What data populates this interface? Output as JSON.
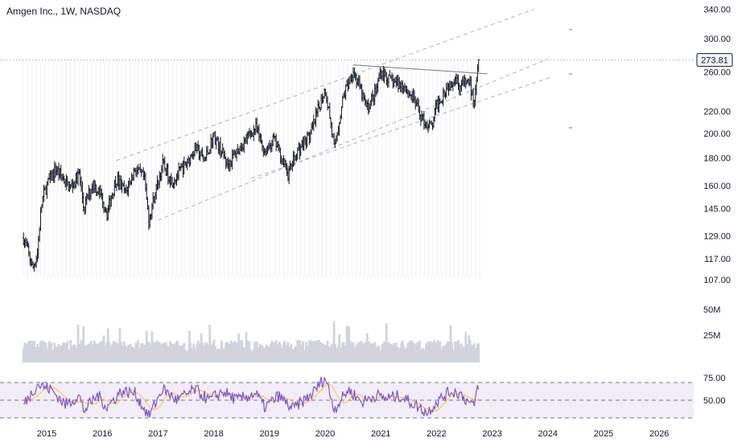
{
  "title": "Amgen Inc., 1W, NASDAQ",
  "chart_data": [
    {
      "type": "candlestick",
      "title": "Amgen Inc., 1W, NASDAQ",
      "scale": "log",
      "last_price": "273.81",
      "y_ticks": [
        "340.00",
        "300.00",
        "260.00",
        "220.00",
        "200.00",
        "180.00",
        "160.00",
        "145.00",
        "129.00",
        "117.00",
        "107.00"
      ],
      "x_ticks": [
        "2015",
        "2016",
        "2017",
        "2018",
        "2019",
        "2020",
        "2021",
        "2022",
        "2023",
        "2024",
        "2025",
        "2026"
      ],
      "ylim": [
        102,
        345
      ],
      "price_path": [
        {
          "t": "2014-08",
          "v": 128
        },
        {
          "t": "2014-10",
          "v": 112
        },
        {
          "t": "2014-11",
          "v": 120
        },
        {
          "t": "2014-12",
          "v": 150
        },
        {
          "t": "2015-01",
          "v": 160
        },
        {
          "t": "2015-03",
          "v": 172
        },
        {
          "t": "2015-06",
          "v": 158
        },
        {
          "t": "2015-08",
          "v": 168
        },
        {
          "t": "2015-09",
          "v": 145
        },
        {
          "t": "2015-11",
          "v": 162
        },
        {
          "t": "2016-01",
          "v": 152
        },
        {
          "t": "2016-02",
          "v": 142
        },
        {
          "t": "2016-04",
          "v": 165
        },
        {
          "t": "2016-06",
          "v": 155
        },
        {
          "t": "2016-08",
          "v": 172
        },
        {
          "t": "2016-10",
          "v": 165
        },
        {
          "t": "2016-11",
          "v": 138
        },
        {
          "t": "2017-02",
          "v": 175
        },
        {
          "t": "2017-04",
          "v": 163
        },
        {
          "t": "2017-07",
          "v": 175
        },
        {
          "t": "2017-09",
          "v": 188
        },
        {
          "t": "2017-11",
          "v": 178
        },
        {
          "t": "2018-01",
          "v": 198
        },
        {
          "t": "2018-04",
          "v": 175
        },
        {
          "t": "2018-06",
          "v": 185
        },
        {
          "t": "2018-10",
          "v": 205
        },
        {
          "t": "2018-12",
          "v": 185
        },
        {
          "t": "2019-02",
          "v": 195
        },
        {
          "t": "2019-05",
          "v": 168
        },
        {
          "t": "2019-07",
          "v": 185
        },
        {
          "t": "2019-10",
          "v": 200
        },
        {
          "t": "2020-01",
          "v": 242
        },
        {
          "t": "2020-02",
          "v": 215
        },
        {
          "t": "2020-03",
          "v": 185
        },
        {
          "t": "2020-05",
          "v": 235
        },
        {
          "t": "2020-07",
          "v": 262
        },
        {
          "t": "2020-10",
          "v": 222
        },
        {
          "t": "2020-12",
          "v": 240
        },
        {
          "t": "2021-01",
          "v": 262
        },
        {
          "t": "2021-03",
          "v": 250
        },
        {
          "t": "2021-06",
          "v": 245
        },
        {
          "t": "2021-08",
          "v": 232
        },
        {
          "t": "2021-10",
          "v": 212
        },
        {
          "t": "2021-12",
          "v": 205
        },
        {
          "t": "2022-01",
          "v": 225
        },
        {
          "t": "2022-03",
          "v": 242
        },
        {
          "t": "2022-05",
          "v": 255
        },
        {
          "t": "2022-06",
          "v": 245
        },
        {
          "t": "2022-08",
          "v": 250
        },
        {
          "t": "2022-09",
          "v": 228
        },
        {
          "t": "2022-10",
          "v": 273.81
        }
      ],
      "trendlines": [
        {
          "style": "dashed",
          "from": {
            "t": "2016-04",
            "v": 178
          },
          "to": {
            "t": "2023-10",
            "v": 340
          }
        },
        {
          "style": "dashed",
          "from": {
            "t": "2017-01",
            "v": 138
          },
          "to": {
            "t": "2024-01",
            "v": 275
          }
        },
        {
          "style": "dashed",
          "from": {
            "t": "2018-09",
            "v": 165
          },
          "to": {
            "t": "2024-02",
            "v": 255
          }
        },
        {
          "style": "solid",
          "from": {
            "t": "2020-07",
            "v": 268
          },
          "to": {
            "t": "2022-12",
            "v": 258
          }
        }
      ]
    },
    {
      "type": "bar",
      "title": "Volume",
      "y_ticks": [
        "50M",
        "25M"
      ]
    },
    {
      "type": "line",
      "title": "RSI",
      "y_ticks": [
        "75.00",
        "50.00"
      ],
      "ylim": [
        25,
        80
      ],
      "bands": [
        30,
        50,
        70
      ],
      "rsi_path": [
        {
          "t": "2014-08",
          "v": 45
        },
        {
          "t": "2014-11",
          "v": 68
        },
        {
          "t": "2015-02",
          "v": 62
        },
        {
          "t": "2015-05",
          "v": 45
        },
        {
          "t": "2015-08",
          "v": 55
        },
        {
          "t": "2015-09",
          "v": 38
        },
        {
          "t": "2015-12",
          "v": 56
        },
        {
          "t": "2016-02",
          "v": 42
        },
        {
          "t": "2016-05",
          "v": 60
        },
        {
          "t": "2016-08",
          "v": 58
        },
        {
          "t": "2016-11",
          "v": 32
        },
        {
          "t": "2017-02",
          "v": 63
        },
        {
          "t": "2017-05",
          "v": 50
        },
        {
          "t": "2017-09",
          "v": 62
        },
        {
          "t": "2017-12",
          "v": 50
        },
        {
          "t": "2018-03",
          "v": 60
        },
        {
          "t": "2018-06",
          "v": 50
        },
        {
          "t": "2018-10",
          "v": 58
        },
        {
          "t": "2018-12",
          "v": 42
        },
        {
          "t": "2019-03",
          "v": 55
        },
        {
          "t": "2019-06",
          "v": 40
        },
        {
          "t": "2019-10",
          "v": 56
        },
        {
          "t": "2020-01",
          "v": 76
        },
        {
          "t": "2020-03",
          "v": 40
        },
        {
          "t": "2020-06",
          "v": 62
        },
        {
          "t": "2020-09",
          "v": 48
        },
        {
          "t": "2020-12",
          "v": 56
        },
        {
          "t": "2021-02",
          "v": 52
        },
        {
          "t": "2021-05",
          "v": 55
        },
        {
          "t": "2021-08",
          "v": 46
        },
        {
          "t": "2021-11",
          "v": 36
        },
        {
          "t": "2022-01",
          "v": 48
        },
        {
          "t": "2022-04",
          "v": 60
        },
        {
          "t": "2022-06",
          "v": 58
        },
        {
          "t": "2022-09",
          "v": 42
        },
        {
          "t": "2022-10",
          "v": 68
        }
      ]
    }
  ]
}
